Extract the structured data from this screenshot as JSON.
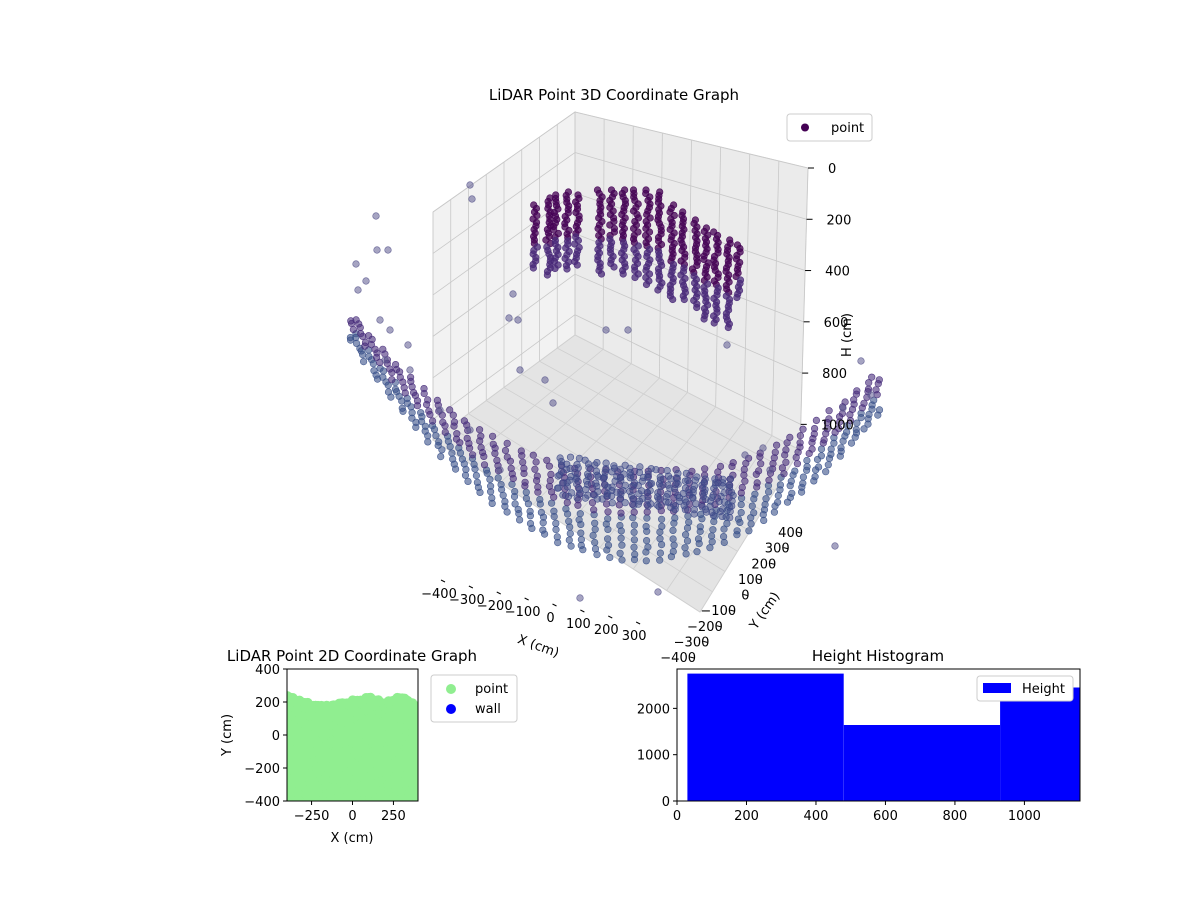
{
  "chart_data": [
    {
      "type": "scatter",
      "projection": "3d",
      "title": "LiDAR Point 3D Coordinate Graph",
      "xlabel": "X (cm)",
      "ylabel": "Y (cm)",
      "zlabel": "H (cm)",
      "x_ticks": [
        "−400",
        "−300",
        "−200",
        "−100",
        "0",
        "100",
        "200",
        "300"
      ],
      "y_ticks": [
        "−400",
        "−300",
        "−200",
        "−100",
        "0",
        "100",
        "200",
        "300",
        "400"
      ],
      "z_ticks": [
        "0",
        "200",
        "400",
        "600",
        "800",
        "1000"
      ],
      "xlim": [
        -400,
        400
      ],
      "ylim": [
        -400,
        400
      ],
      "zlim": [
        1100,
        0
      ],
      "z_inverted": true,
      "grid": true,
      "legend": {
        "placement": "upper-right",
        "entries": [
          "point"
        ]
      },
      "series": [
        {
          "name": "point",
          "colormap": "viridis (dark purple to blue by height)",
          "clusters": [
            {
              "description": "ceiling plateau",
              "x_range": [
                -250,
                150
              ],
              "y_range": [
                0,
                400
              ],
              "h_range": [
                0,
                300
              ]
            },
            {
              "description": "curved floor band",
              "x_range": [
                -400,
                400
              ],
              "y_range": [
                -400,
                400
              ],
              "h_range": [
                900,
                1050
              ]
            }
          ]
        }
      ]
    },
    {
      "type": "scatter",
      "title": "LiDAR Point 2D Coordinate Graph",
      "xlabel": "X (cm)",
      "ylabel": "Y (cm)",
      "x_ticks": [
        "−250",
        "0",
        "250"
      ],
      "y_ticks": [
        "400",
        "200",
        "0",
        "−200",
        "−400"
      ],
      "xlim": [
        -400,
        400
      ],
      "ylim": [
        -400,
        400
      ],
      "legend": {
        "placement": "outside-right",
        "entries": [
          "point",
          "wall"
        ]
      },
      "series": [
        {
          "name": "point",
          "color": "#90ee90",
          "y_top_edge_at_x": [
            [
              -400,
              240
            ],
            [
              -300,
              200
            ],
            [
              -200,
              180
            ],
            [
              -100,
              190
            ],
            [
              0,
              210
            ],
            [
              100,
              230
            ],
            [
              200,
              200
            ],
            [
              300,
              240
            ],
            [
              400,
              170
            ]
          ]
        },
        {
          "name": "wall",
          "color": "#0000ff",
          "points": []
        }
      ]
    },
    {
      "type": "bar",
      "title": "Height Histogram",
      "x_ticks": [
        "0",
        "200",
        "400",
        "600",
        "800",
        "1000"
      ],
      "y_ticks": [
        "0",
        "1000",
        "2000"
      ],
      "xlim": [
        0,
        1160
      ],
      "ylim": [
        0,
        2850
      ],
      "legend": {
        "placement": "upper-right",
        "entries": [
          "Height"
        ]
      },
      "series": [
        {
          "name": "Height",
          "color": "#0000ff",
          "bins": [
            {
              "x0": 30,
              "x1": 480,
              "count": 2750
            },
            {
              "x0": 480,
              "x1": 930,
              "count": 1640
            },
            {
              "x0": 930,
              "x1": 1160,
              "count": 2450
            }
          ]
        }
      ]
    }
  ]
}
